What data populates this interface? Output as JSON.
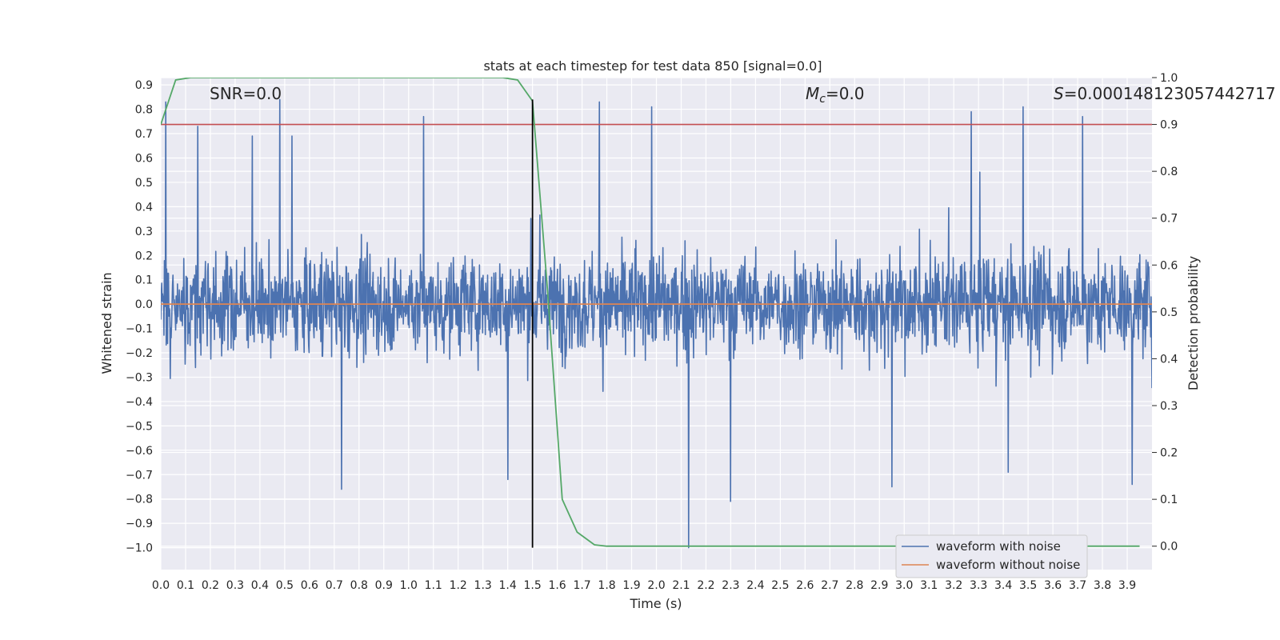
{
  "chart_data": {
    "type": "line",
    "title": "stats at each timestep for test data 850 [signal=0.0]",
    "xlabel": "Time (s)",
    "ylabel": "Whitened strain",
    "y2label": "Detection probability",
    "xlim": [
      0.0,
      4.0
    ],
    "ylim": [
      -1.09,
      0.93
    ],
    "y2lim": [
      -0.05,
      1.0
    ],
    "xticks": [
      "0.0",
      "0.1",
      "0.2",
      "0.3",
      "0.4",
      "0.5",
      "0.6",
      "0.7",
      "0.8",
      "0.9",
      "1.0",
      "1.1",
      "1.2",
      "1.3",
      "1.4",
      "1.5",
      "1.6",
      "1.7",
      "1.8",
      "1.9",
      "2.0",
      "2.1",
      "2.2",
      "2.3",
      "2.4",
      "2.5",
      "2.6",
      "2.7",
      "2.8",
      "2.9",
      "3.0",
      "3.1",
      "3.2",
      "3.3",
      "3.4",
      "3.5",
      "3.6",
      "3.7",
      "3.8",
      "3.9"
    ],
    "yticks": [
      "0.9",
      "0.8",
      "0.7",
      "0.6",
      "0.5",
      "0.4",
      "0.3",
      "0.2",
      "0.1",
      "0.0",
      "-0.1",
      "-0.2",
      "-0.3",
      "-0.4",
      "-0.5",
      "-0.6",
      "-0.7",
      "-0.8",
      "-0.9",
      "-1.0"
    ],
    "y2ticks": [
      "1.0",
      "0.9",
      "0.8",
      "0.7",
      "0.6",
      "0.5",
      "0.4",
      "0.3",
      "0.2",
      "0.1",
      "0.0"
    ],
    "annotations": {
      "snr": "SNR=0.0",
      "mc_symbol": "M",
      "mc_sub": "c",
      "mc_value": "=0.0",
      "s_symbol": "S",
      "s_value": "=0.00014812305744271​7"
    },
    "series": [
      {
        "name": "waveform with noise",
        "axis": "left",
        "color": "#4c72b0",
        "kind": "noise",
        "description_range": [
          -1.0,
          0.84
        ],
        "peaks": [
          {
            "t": 0.02,
            "v": 0.83
          },
          {
            "t": 0.15,
            "v": 0.73
          },
          {
            "t": 0.37,
            "v": 0.69
          },
          {
            "t": 0.48,
            "v": 0.84
          },
          {
            "t": 0.53,
            "v": 0.69
          },
          {
            "t": 1.06,
            "v": 0.77
          },
          {
            "t": 2.13,
            "v": -1.0
          },
          {
            "t": 1.77,
            "v": 0.83
          },
          {
            "t": 1.98,
            "v": 0.81
          },
          {
            "t": 3.27,
            "v": 0.79
          },
          {
            "t": 3.48,
            "v": 0.81
          },
          {
            "t": 3.72,
            "v": 0.77
          },
          {
            "t": 0.73,
            "v": -0.76
          },
          {
            "t": 2.3,
            "v": -0.81
          },
          {
            "t": 2.95,
            "v": -0.75
          },
          {
            "t": 3.42,
            "v": -0.69
          },
          {
            "t": 3.92,
            "v": -0.74
          },
          {
            "t": 1.4,
            "v": -0.72
          }
        ]
      },
      {
        "name": "waveform without noise",
        "axis": "left",
        "color": "#dd8452",
        "x": [
          0.0,
          4.0
        ],
        "y": [
          0.0,
          0.0
        ]
      },
      {
        "name": "detection probability",
        "axis": "right",
        "color": "#55a868",
        "x": [
          0.0,
          0.06,
          0.12,
          0.2,
          1.0,
          1.38,
          1.44,
          1.5,
          1.56,
          1.62,
          1.68,
          1.75,
          1.8,
          2.0,
          3.95
        ],
        "y": [
          0.9,
          0.995,
          1.0,
          1.0,
          1.0,
          1.0,
          0.995,
          0.95,
          0.55,
          0.1,
          0.03,
          0.003,
          0.0,
          0.0,
          0.0
        ]
      }
    ],
    "threshold": {
      "axis": "right",
      "value": 0.9,
      "color": "#c44e52"
    },
    "vline": {
      "x": 1.5,
      "ymin": -1.0,
      "ymax": 0.84,
      "color": "#000000"
    },
    "legend": {
      "position": "lower-right",
      "entries": [
        {
          "label": "waveform with noise",
          "color": "#4c72b0"
        },
        {
          "label": "waveform without noise",
          "color": "#dd8452"
        }
      ]
    },
    "grid": true,
    "background": "#eaeaf2"
  }
}
